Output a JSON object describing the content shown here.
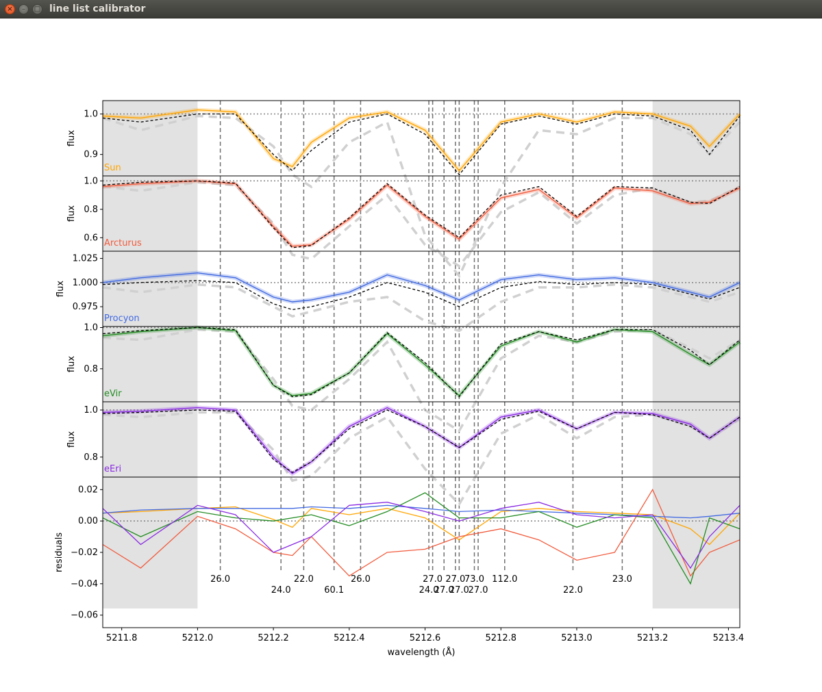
{
  "window": {
    "title": "line list calibrator",
    "close_glyph": "×",
    "minimize_glyph": "–",
    "maximize_glyph": "□"
  },
  "figure": {
    "xlabel": "wavelength (Å)",
    "xlim": [
      5211.75,
      5213.43
    ],
    "x_ticks": [
      "5211.8",
      "5212.0",
      "5212.2",
      "5212.4",
      "5212.6",
      "5212.8",
      "5213.0",
      "5213.2",
      "5213.4"
    ],
    "shaded_regions": [
      [
        5211.75,
        5212.0
      ],
      [
        5213.2,
        5213.43
      ]
    ],
    "line_markers": [
      {
        "wavelength": 5212.06,
        "label": "26.0",
        "row": 0
      },
      {
        "wavelength": 5212.22,
        "label": "24.0",
        "row": 1
      },
      {
        "wavelength": 5212.28,
        "label": "22.0",
        "row": 0
      },
      {
        "wavelength": 5212.36,
        "label": "60.1",
        "row": 1
      },
      {
        "wavelength": 5212.43,
        "label": "26.0",
        "row": 0
      },
      {
        "wavelength": 5212.61,
        "label": "24.0",
        "row": 1
      },
      {
        "wavelength": 5212.62,
        "label": "27.0",
        "row": 0
      },
      {
        "wavelength": 5212.65,
        "label": "27.0",
        "row": 1
      },
      {
        "wavelength": 5212.68,
        "label": "27.0",
        "row": 0
      },
      {
        "wavelength": 5212.69,
        "label": "27.0",
        "row": 1
      },
      {
        "wavelength": 5212.73,
        "label": "73.0",
        "row": 0
      },
      {
        "wavelength": 5212.74,
        "label": "27.0",
        "row": 1
      },
      {
        "wavelength": 5212.81,
        "label": "112.0",
        "row": 0
      },
      {
        "wavelength": 5212.99,
        "label": "22.0",
        "row": 1
      },
      {
        "wavelength": 5213.12,
        "label": "23.0",
        "row": 0
      }
    ],
    "colors": {
      "shade": "#e2e2e2",
      "model": "#000000",
      "reference": "#d0d0d0",
      "marker": "#707070",
      "unity": "#808080"
    }
  },
  "chart_data": {
    "type": "line",
    "x": [
      5211.75,
      5211.85,
      5212.0,
      5212.1,
      5212.2,
      5212.25,
      5212.3,
      5212.4,
      5212.5,
      5212.6,
      5212.69,
      5212.8,
      5212.9,
      5213.0,
      5213.1,
      5213.2,
      5213.3,
      5213.35,
      5213.43
    ],
    "panels": [
      {
        "name": "Sun",
        "color": "#ffa500",
        "ylabel": "flux",
        "ylim": [
          0.847,
          1.033
        ],
        "yticks": [
          "0.9",
          "1.0"
        ],
        "ytick_values": [
          0.9,
          1.0
        ],
        "observed": [
          0.995,
          0.99,
          1.01,
          1.005,
          0.89,
          0.87,
          0.93,
          0.99,
          1.005,
          0.96,
          0.86,
          0.98,
          1.0,
          0.98,
          1.005,
          1.0,
          0.97,
          0.92,
          1.0
        ],
        "model": [
          0.99,
          0.98,
          1.0,
          1.0,
          0.9,
          0.86,
          0.91,
          0.98,
          1.0,
          0.95,
          0.85,
          0.975,
          0.995,
          0.975,
          1.0,
          0.995,
          0.96,
          0.9,
          0.995
        ],
        "reference": [
          0.99,
          0.96,
          0.995,
          0.99,
          0.92,
          0.85,
          0.82,
          0.93,
          0.98,
          0.7,
          0.6,
          0.82,
          0.96,
          0.95,
          0.99,
          0.99,
          0.95,
          0.9,
          0.98
        ]
      },
      {
        "name": "Arcturus",
        "color": "#f15a3c",
        "ylabel": "flux",
        "ylim": [
          0.505,
          1.035
        ],
        "yticks": [
          "0.6",
          "0.8",
          "1.0"
        ],
        "ytick_values": [
          0.6,
          0.8,
          1.0
        ],
        "observed": [
          0.96,
          0.98,
          1.0,
          0.98,
          0.68,
          0.54,
          0.55,
          0.73,
          0.97,
          0.75,
          0.59,
          0.88,
          0.94,
          0.74,
          0.95,
          0.93,
          0.84,
          0.85,
          0.95
        ],
        "model": [
          0.97,
          0.99,
          1.0,
          0.985,
          0.67,
          0.53,
          0.545,
          0.74,
          0.98,
          0.76,
          0.6,
          0.9,
          0.96,
          0.75,
          0.96,
          0.95,
          0.85,
          0.84,
          0.96
        ],
        "reference": [
          0.96,
          0.93,
          0.99,
          0.97,
          0.7,
          0.48,
          0.45,
          0.68,
          0.9,
          0.55,
          0.4,
          0.78,
          0.92,
          0.7,
          0.9,
          0.95,
          0.85,
          0.86,
          0.96
        ]
      },
      {
        "name": "Procyon",
        "color": "#4169e1",
        "ylabel": "flux",
        "ylim": [
          0.9545,
          1.0325
        ],
        "yticks": [
          "0.975",
          "1.000",
          "1.025"
        ],
        "ytick_values": [
          0.975,
          1.0,
          1.025
        ],
        "observed": [
          1.0,
          1.005,
          1.01,
          1.005,
          0.985,
          0.98,
          0.982,
          0.99,
          1.008,
          0.997,
          0.982,
          1.003,
          1.008,
          1.003,
          1.005,
          1.0,
          0.99,
          0.985,
          1.0
        ],
        "model": [
          0.998,
          1.0,
          1.002,
          1.0,
          0.978,
          0.972,
          0.975,
          0.985,
          1.0,
          0.99,
          0.975,
          0.995,
          1.001,
          0.998,
          1.0,
          0.998,
          0.988,
          0.983,
          0.995
        ],
        "reference": [
          0.995,
          0.99,
          0.998,
          0.995,
          0.975,
          0.965,
          0.97,
          0.98,
          0.985,
          0.96,
          0.95,
          0.98,
          0.995,
          0.995,
          0.998,
          0.995,
          0.985,
          0.98,
          0.99
        ]
      },
      {
        "name": "eVir",
        "color": "#228b22",
        "ylabel": "flux",
        "ylim": [
          0.64,
          1.005
        ],
        "yticks": [
          "0.8",
          "1.0"
        ],
        "ytick_values": [
          0.8,
          1.0
        ],
        "observed": [
          0.96,
          0.98,
          1.0,
          0.985,
          0.72,
          0.67,
          0.68,
          0.78,
          0.97,
          0.82,
          0.67,
          0.91,
          0.98,
          0.93,
          0.99,
          0.98,
          0.87,
          0.82,
          0.93
        ],
        "model": [
          0.97,
          0.985,
          1.0,
          0.99,
          0.72,
          0.665,
          0.675,
          0.78,
          0.975,
          0.83,
          0.665,
          0.92,
          0.98,
          0.94,
          0.99,
          0.99,
          0.89,
          0.82,
          0.94
        ],
        "reference": [
          0.95,
          0.94,
          0.99,
          0.98,
          0.75,
          0.62,
          0.6,
          0.75,
          0.93,
          0.6,
          0.5,
          0.85,
          0.96,
          0.93,
          0.98,
          0.99,
          0.9,
          0.85,
          0.94
        ]
      },
      {
        "name": "eEri",
        "color": "#8a2be2",
        "ylabel": "flux",
        "ylim": [
          0.715,
          1.035
        ],
        "yticks": [
          "0.8",
          "1.0"
        ],
        "ytick_values": [
          0.8,
          1.0
        ],
        "observed": [
          0.99,
          0.995,
          1.01,
          1.0,
          0.8,
          0.73,
          0.78,
          0.93,
          1.01,
          0.93,
          0.84,
          0.97,
          1.0,
          0.92,
          0.99,
          0.985,
          0.94,
          0.88,
          0.97
        ],
        "model": [
          0.985,
          0.99,
          1.0,
          0.995,
          0.79,
          0.735,
          0.78,
          0.92,
          1.0,
          0.93,
          0.84,
          0.96,
          0.995,
          0.92,
          0.99,
          0.98,
          0.93,
          0.88,
          0.97
        ],
        "reference": [
          0.98,
          0.97,
          0.99,
          0.99,
          0.83,
          0.7,
          0.72,
          0.88,
          0.97,
          0.75,
          0.6,
          0.9,
          0.98,
          0.88,
          0.97,
          0.98,
          0.93,
          0.88,
          0.96
        ]
      }
    ],
    "residuals": {
      "ylabel": "residuals",
      "ylim": [
        -0.068,
        0.028
      ],
      "yticks": [
        "0.02",
        "0.00",
        "−0.02",
        "−0.04",
        "−0.06"
      ],
      "ytick_values": [
        0.02,
        0.0,
        -0.02,
        -0.04,
        -0.06
      ],
      "series": [
        {
          "name": "Sun",
          "color": "#ffa500",
          "values": [
            0.005,
            0.006,
            0.008,
            0.009,
            0.001,
            -0.004,
            0.008,
            0.004,
            0.008,
            0.002,
            -0.012,
            0.006,
            0.008,
            0.006,
            0.005,
            0.004,
            -0.005,
            -0.015,
            0.005
          ]
        },
        {
          "name": "Arcturus",
          "color": "#f15a3c",
          "values": [
            -0.015,
            -0.03,
            0.003,
            -0.005,
            -0.02,
            -0.022,
            -0.01,
            -0.035,
            -0.02,
            -0.018,
            -0.01,
            -0.005,
            -0.012,
            -0.025,
            -0.02,
            0.02,
            -0.035,
            -0.02,
            -0.012
          ]
        },
        {
          "name": "Procyon",
          "color": "#4169e1",
          "values": [
            0.005,
            0.007,
            0.008,
            0.008,
            0.008,
            0.008,
            0.009,
            0.008,
            0.01,
            0.008,
            0.006,
            0.007,
            0.006,
            0.005,
            0.004,
            0.003,
            0.002,
            0.003,
            0.005
          ]
        },
        {
          "name": "eVir",
          "color": "#228b22",
          "values": [
            0.002,
            -0.01,
            0.006,
            0.002,
            0.0,
            0.002,
            0.004,
            -0.003,
            0.006,
            0.018,
            0.002,
            0.002,
            0.006,
            -0.004,
            0.004,
            0.002,
            -0.04,
            0.002,
            -0.005
          ]
        },
        {
          "name": "eEri",
          "color": "#8a2be2",
          "values": [
            0.008,
            -0.015,
            0.01,
            0.004,
            -0.02,
            -0.015,
            -0.01,
            0.01,
            0.012,
            0.006,
            0.0,
            0.008,
            0.012,
            0.004,
            0.002,
            0.004,
            -0.03,
            -0.01,
            0.01
          ]
        }
      ]
    }
  }
}
